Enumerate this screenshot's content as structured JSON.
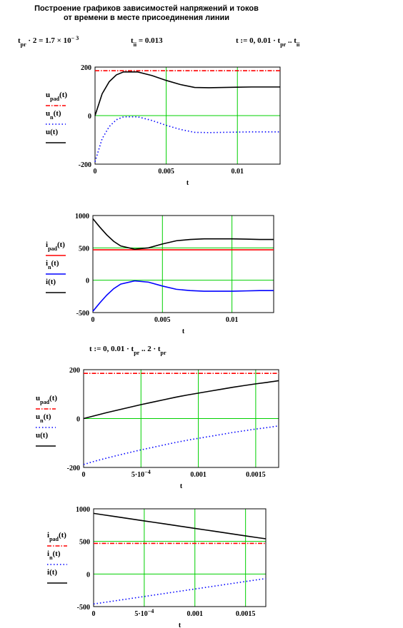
{
  "header": {
    "title_lines": [
      "Построение графиков зависимостей напряжений и токов",
      "от времени в месте присоединения линии"
    ],
    "formulas": [
      [
        {
          "text": "t"
        },
        {
          "text": "pr",
          "sub": true
        },
        {
          "text": " · 2 = 1.7 × 10"
        },
        {
          "text": "− 3",
          "sup": true
        }
      ],
      [
        {
          "text": "t"
        },
        {
          "text": "ii",
          "sub": true
        },
        {
          "text": " = 0.013"
        }
      ],
      [
        {
          "text": "t := 0, 0.01 · t"
        },
        {
          "text": "pr",
          "sub": true
        },
        {
          "text": " .. t"
        },
        {
          "text": "ii",
          "sub": true
        }
      ],
      [
        {
          "text": "t := 0, 0.01 · t"
        },
        {
          "text": "pr",
          "sub": true
        },
        {
          "text": " .. 2 · t"
        },
        {
          "text": "pr",
          "sub": true
        }
      ]
    ]
  },
  "chart_data": [
    {
      "type": "line",
      "xlabel": "t",
      "grid": true,
      "grid_color": "#00d000",
      "x": [
        0,
        0.0005,
        0.001,
        0.0015,
        0.002,
        0.003,
        0.004,
        0.005,
        0.006,
        0.007,
        0.008,
        0.009,
        0.01,
        0.011,
        0.012,
        0.013
      ],
      "xlim": [
        0,
        0.013
      ],
      "xticks": [
        0,
        0.005,
        0.01
      ],
      "ylim": [
        -200,
        200
      ],
      "yticks": [
        -200,
        0,
        200
      ],
      "series": [
        {
          "name": "u",
          "sub": "pad",
          "arg": "(t)",
          "color": "#ff0000",
          "style": "dashdot",
          "values": [
            185,
            185,
            185,
            185,
            185,
            185,
            185,
            185,
            185,
            185,
            185,
            185,
            185,
            185,
            185,
            185
          ]
        },
        {
          "name": "u",
          "sub": "n",
          "arg": "(t)",
          "color": "#0000ff",
          "style": "dot",
          "values": [
            -190,
            -95,
            -45,
            -17,
            -5,
            -5,
            -20,
            -40,
            -57,
            -69,
            -70,
            -69,
            -68,
            -67,
            -67,
            -67
          ]
        },
        {
          "name": "u",
          "sub": "",
          "arg": "(t)",
          "color": "#000000",
          "style": "solid",
          "values": [
            0,
            90,
            140,
            168,
            180,
            180,
            165,
            145,
            128,
            116,
            115,
            116,
            117,
            118,
            118,
            118
          ]
        }
      ]
    },
    {
      "type": "line",
      "xlabel": "t",
      "grid": true,
      "grid_color": "#00d000",
      "x": [
        0,
        0.0005,
        0.001,
        0.0015,
        0.002,
        0.003,
        0.004,
        0.005,
        0.006,
        0.007,
        0.008,
        0.009,
        0.01,
        0.011,
        0.012,
        0.013
      ],
      "xlim": [
        0,
        0.013
      ],
      "xticks": [
        0,
        0.005,
        0.01
      ],
      "ylim": [
        -500,
        1000
      ],
      "yticks": [
        -500,
        0,
        500,
        1000
      ],
      "series": [
        {
          "name": "i",
          "sub": "pad",
          "arg": "(t)",
          "color": "#ff0000",
          "style": "solid",
          "values": [
            470,
            470,
            470,
            470,
            470,
            470,
            470,
            470,
            470,
            470,
            470,
            470,
            470,
            470,
            470,
            470
          ]
        },
        {
          "name": "i",
          "sub": "n",
          "arg": "(t)",
          "color": "#0000ff",
          "style": "solid",
          "values": [
            -480,
            -350,
            -230,
            -130,
            -60,
            -10,
            -30,
            -90,
            -140,
            -160,
            -170,
            -170,
            -170,
            -165,
            -160,
            -160
          ]
        },
        {
          "name": "i",
          "sub": "",
          "arg": "(t)",
          "color": "#000000",
          "style": "solid",
          "values": [
            950,
            820,
            700,
            600,
            530,
            480,
            500,
            560,
            610,
            630,
            640,
            640,
            640,
            635,
            630,
            630
          ]
        }
      ]
    },
    {
      "type": "line",
      "xlabel": "t",
      "grid": true,
      "grid_color": "#00d000",
      "x": [
        0,
        0.0001,
        0.0002,
        0.0003,
        0.0004,
        0.0005,
        0.0006,
        0.0007,
        0.0008,
        0.0009,
        0.001,
        0.0011,
        0.0012,
        0.0013,
        0.0014,
        0.0015,
        0.0016,
        0.0017
      ],
      "xlim": [
        0,
        0.0017
      ],
      "xticks": [
        0,
        {
          "value": 0.0005,
          "label": "5·10",
          "label_sup": "−4"
        },
        0.001,
        0.0015
      ],
      "ylim": [
        -200,
        200
      ],
      "yticks": [
        -200,
        0,
        200
      ],
      "series": [
        {
          "name": "u",
          "sub": "pad",
          "arg": "(t)",
          "color": "#ff0000",
          "style": "dashdot",
          "values": [
            185,
            185,
            185,
            185,
            185,
            185,
            185,
            185,
            185,
            185,
            185,
            185,
            185,
            185,
            185,
            185,
            185,
            185
          ]
        },
        {
          "name": "u",
          "sub": "n",
          "arg": "(t)",
          "color": "#0000ff",
          "style": "dot",
          "values": [
            -188,
            -174,
            -162,
            -150,
            -139,
            -128,
            -118,
            -108,
            -98,
            -89,
            -81,
            -73,
            -65,
            -57,
            -50,
            -43,
            -37,
            -30
          ]
        },
        {
          "name": "u",
          "sub": "",
          "arg": "(t)",
          "color": "#000000",
          "style": "solid",
          "values": [
            0,
            12,
            24,
            35,
            46,
            57,
            67,
            77,
            87,
            96,
            104,
            112,
            120,
            128,
            135,
            142,
            148,
            155
          ]
        }
      ]
    },
    {
      "type": "line",
      "xlabel": "t",
      "grid": true,
      "grid_color": "#00d000",
      "x": [
        0,
        0.0001,
        0.0002,
        0.0003,
        0.0004,
        0.0005,
        0.0006,
        0.0007,
        0.0008,
        0.0009,
        0.001,
        0.0011,
        0.0012,
        0.0013,
        0.0014,
        0.0015,
        0.0016,
        0.0017
      ],
      "xlim": [
        0,
        0.0017
      ],
      "xticks": [
        0,
        {
          "value": 0.0005,
          "label": "5·10",
          "label_sup": "−4"
        },
        0.001,
        0.0015
      ],
      "ylim": [
        -500,
        1000
      ],
      "yticks": [
        -500,
        0,
        500,
        1000
      ],
      "series": [
        {
          "name": "i",
          "sub": "pad",
          "arg": "(t)",
          "color": "#ff0000",
          "style": "dashdot",
          "values": [
            470,
            470,
            470,
            470,
            470,
            470,
            470,
            470,
            470,
            470,
            470,
            470,
            470,
            470,
            470,
            470,
            470,
            470
          ]
        },
        {
          "name": "i",
          "sub": "n",
          "arg": "(t)",
          "color": "#0000ff",
          "style": "dot",
          "values": [
            -460,
            -437,
            -414,
            -391,
            -368,
            -345,
            -322,
            -299,
            -276,
            -253,
            -230,
            -207,
            -184,
            -161,
            -138,
            -115,
            -92,
            -70
          ]
        },
        {
          "name": "i",
          "sub": "",
          "arg": "(t)",
          "color": "#000000",
          "style": "solid",
          "values": [
            930,
            907,
            884,
            861,
            838,
            815,
            792,
            769,
            746,
            723,
            700,
            677,
            654,
            631,
            608,
            585,
            562,
            540
          ]
        }
      ]
    }
  ]
}
